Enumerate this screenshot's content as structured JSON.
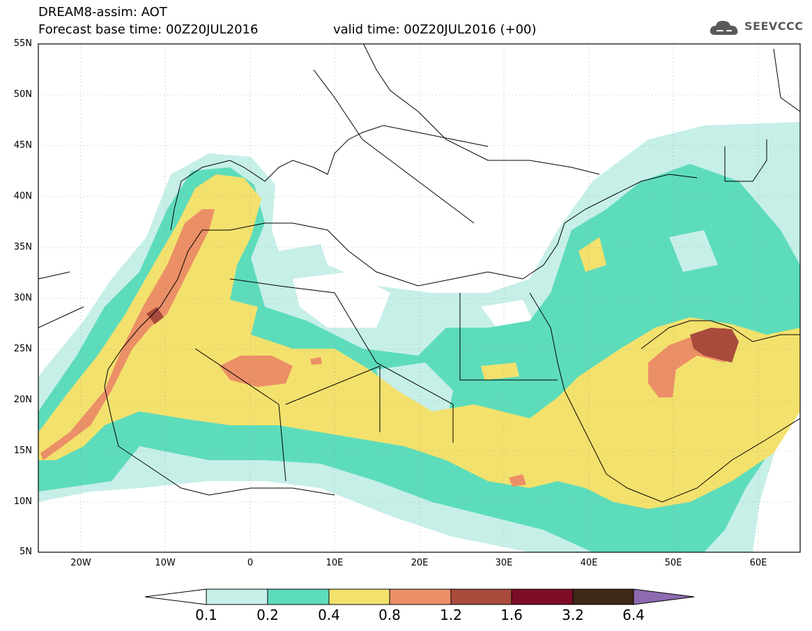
{
  "title": {
    "line1": "DREAM8-assim: AOT",
    "line2": "Forecast base time: 00Z20JUL2016",
    "valid": "valid time: 00Z20JUL2016 (+00)"
  },
  "logo": {
    "text": "SEEVCCC",
    "icon": "cloud-logo-icon"
  },
  "axes": {
    "lat_labels": [
      "55N",
      "50N",
      "45N",
      "40N",
      "35N",
      "30N",
      "25N",
      "20N",
      "15N",
      "10N",
      "5N"
    ],
    "lon_labels": [
      "20W",
      "10W",
      "0",
      "10E",
      "20E",
      "30E",
      "40E",
      "50E",
      "60E"
    ],
    "lon_range": [
      -25,
      65
    ],
    "lat_range": [
      5,
      55
    ]
  },
  "colorbar": {
    "labels": [
      "0.1",
      "0.2",
      "0.4",
      "0.8",
      "1.2",
      "1.6",
      "3.2",
      "6.4"
    ],
    "colors": [
      "#ffffff",
      "#c6efe8",
      "#5ddcbb",
      "#f3e16d",
      "#eb8f67",
      "#a84b3d",
      "#7d0d27",
      "#3d2816",
      "#8e6bb0"
    ]
  },
  "colors": {
    "aot_0_1": "#c6efe8",
    "aot_0_2": "#5ddcbb",
    "aot_0_4": "#f3e16d",
    "aot_0_8": "#eb8f67",
    "aot_1_2": "#a84b3d"
  }
}
